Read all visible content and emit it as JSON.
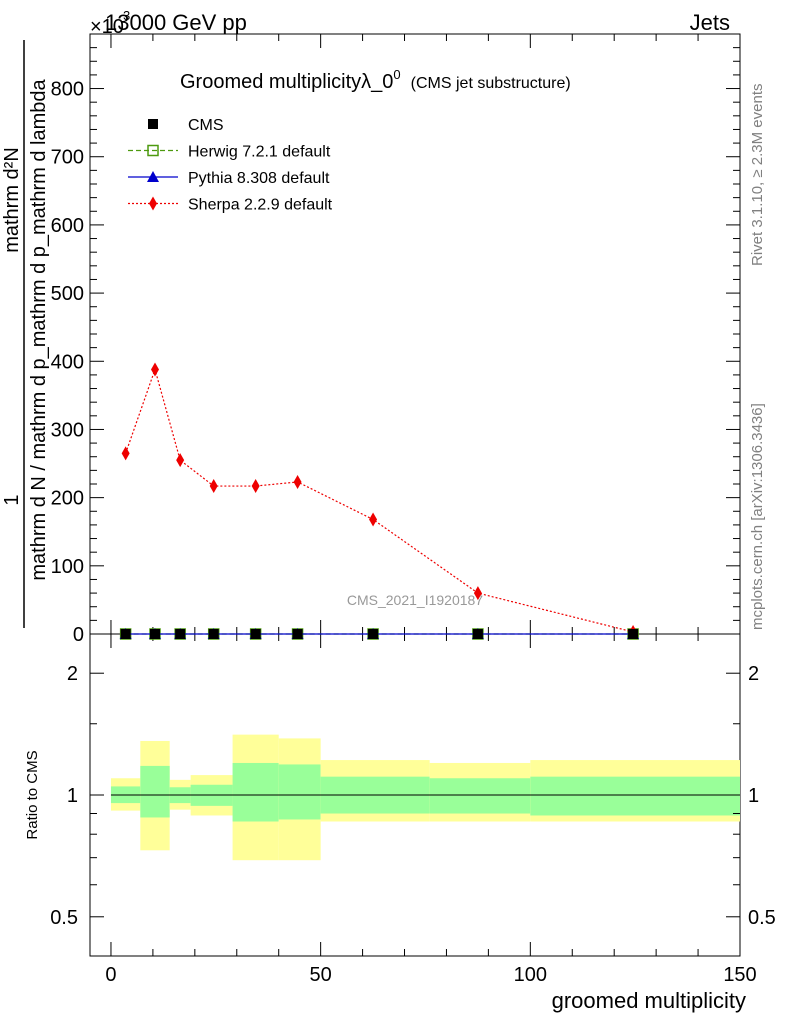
{
  "header": {
    "energy": "13000 GeV pp",
    "process": "Jets",
    "exponent_prefix": "×10",
    "exponent": "3"
  },
  "title": {
    "main": "Groomed multiplicityλ_0",
    "superscript": "0",
    "sub": "(CMS jet substructure)"
  },
  "side": {
    "rivet": "Rivet 3.1.10, ≥ 2.3M events",
    "mcplots": "mcplots.cern.ch [arXiv:1306.3436]"
  },
  "watermark": "CMS_2021_I1920187",
  "ylabel_main": {
    "line1": "1",
    "line2": "mathrm d N / mathrm d p_mathrm d p_mathrm d lambda",
    "line3": "mathrm d²N"
  },
  "legend": [
    {
      "name": "CMS",
      "color": "#000000",
      "marker": "square-filled",
      "line": "none"
    },
    {
      "name": "Herwig 7.2.1 default",
      "color": "#4d9a0f",
      "marker": "square-open",
      "line": "dashed"
    },
    {
      "name": "Pythia 8.308 default",
      "color": "#0000cc",
      "marker": "triangle",
      "line": "solid"
    },
    {
      "name": "Sherpa 2.2.9 default",
      "color": "#ee0000",
      "marker": "diamond",
      "line": "dotted"
    }
  ],
  "chart_data": {
    "type": "line",
    "xlabel": "groomed multiplicity",
    "ylabel": "mathrm d²N / mathrm d N mathrm d p_mathrm d p_mathrm d lambda",
    "xlim": [
      -5,
      150
    ],
    "ylim": [
      0,
      880
    ],
    "y_multiplier": "×10³",
    "x_ticks": [
      0,
      50,
      100,
      150
    ],
    "y_ticks": [
      0,
      100,
      200,
      300,
      400,
      500,
      600,
      700,
      800
    ],
    "series": [
      {
        "name": "CMS",
        "x": [
          3.5,
          10.5,
          16.5,
          24.5,
          34.5,
          44.5,
          62.5,
          87.5,
          124.5
        ],
        "values": [
          0,
          0,
          0,
          0,
          0,
          0,
          0,
          0,
          0
        ]
      },
      {
        "name": "Herwig 7.2.1 default",
        "x": [
          3.5,
          10.5,
          16.5,
          24.5,
          34.5,
          44.5,
          62.5,
          87.5,
          124.5
        ],
        "values": [
          0,
          0,
          0,
          0,
          0,
          0,
          0,
          0,
          0
        ]
      },
      {
        "name": "Pythia 8.308 default",
        "x": [
          3.5,
          10.5,
          16.5,
          24.5,
          34.5,
          44.5,
          62.5,
          87.5,
          124.5
        ],
        "values": [
          0,
          0,
          0,
          0,
          0,
          0,
          0,
          0,
          0
        ]
      },
      {
        "name": "Sherpa 2.2.9 default",
        "x": [
          3.5,
          10.5,
          16.5,
          24.5,
          34.5,
          44.5,
          62.5,
          87.5,
          124.5
        ],
        "values": [
          265,
          388,
          255,
          217,
          217,
          223,
          168,
          60,
          3
        ]
      }
    ],
    "ratio": {
      "ylabel": "Ratio to CMS",
      "scale": "log",
      "ylim": [
        0.4,
        2.5
      ],
      "y_ticks": [
        0.5,
        1,
        2
      ],
      "bins": [
        {
          "lo": 0,
          "hi": 7,
          "inner": [
            0.955,
            1.05
          ],
          "outer": [
            0.915,
            1.1
          ]
        },
        {
          "lo": 7,
          "hi": 14,
          "inner": [
            0.88,
            1.18
          ],
          "outer": [
            0.73,
            1.36
          ]
        },
        {
          "lo": 14,
          "hi": 19,
          "inner": [
            0.955,
            1.045
          ],
          "outer": [
            0.92,
            1.09
          ]
        },
        {
          "lo": 19,
          "hi": 29,
          "inner": [
            0.94,
            1.06
          ],
          "outer": [
            0.89,
            1.12
          ]
        },
        {
          "lo": 29,
          "hi": 40,
          "inner": [
            0.86,
            1.2
          ],
          "outer": [
            0.69,
            1.41
          ]
        },
        {
          "lo": 40,
          "hi": 50,
          "inner": [
            0.87,
            1.19
          ],
          "outer": [
            0.69,
            1.38
          ]
        },
        {
          "lo": 50,
          "hi": 76,
          "inner": [
            0.9,
            1.11
          ],
          "outer": [
            0.86,
            1.22
          ]
        },
        {
          "lo": 76,
          "hi": 100,
          "inner": [
            0.9,
            1.1
          ],
          "outer": [
            0.86,
            1.2
          ]
        },
        {
          "lo": 100,
          "hi": 150,
          "inner": [
            0.89,
            1.11
          ],
          "outer": [
            0.86,
            1.22
          ]
        }
      ]
    }
  },
  "colors": {
    "inner_band": "#99ff99",
    "outer_band": "#ffff99"
  }
}
